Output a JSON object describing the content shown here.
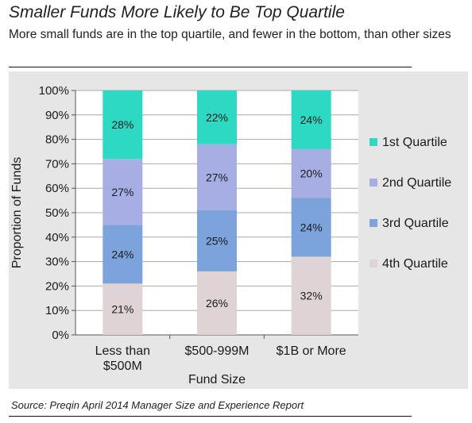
{
  "header": {
    "title": "Smaller Funds More Likely to Be Top Quartile",
    "subtitle": "More small funds are in the top quartile, and fewer in the bottom, than other sizes"
  },
  "footer": {
    "source": "Source: Preqin April 2014 Manager Size and Experience Report"
  },
  "chart_data": {
    "type": "bar",
    "stacked": true,
    "title": "Smaller Funds More Likely to Be Top Quartile",
    "subtitle": "More small funds are in the top quartile, and fewer in the bottom, than other sizes",
    "xlabel": "Fund Size",
    "ylabel": "Proportion of Funds",
    "ylim": [
      0,
      100
    ],
    "yticks": [
      "0%",
      "10%",
      "20%",
      "30%",
      "40%",
      "50%",
      "60%",
      "70%",
      "80%",
      "90%",
      "100%"
    ],
    "categories": [
      [
        "Less than",
        "$500M"
      ],
      [
        "$500-999M"
      ],
      [
        "$1B or More"
      ]
    ],
    "legend_position": "right",
    "grid": true,
    "series": [
      {
        "name": "4th Quartile",
        "color": "#e0d3d5",
        "values": [
          21,
          26,
          32
        ],
        "labels": [
          "21%",
          "26%",
          "32%"
        ]
      },
      {
        "name": "3rd Quartile",
        "color": "#7da3dd",
        "values": [
          24,
          25,
          24
        ],
        "labels": [
          "24%",
          "25%",
          "24%"
        ]
      },
      {
        "name": "2nd Quartile",
        "color": "#a6aee4",
        "values": [
          27,
          27,
          20
        ],
        "labels": [
          "27%",
          "27%",
          "20%"
        ]
      },
      {
        "name": "1st Quartile",
        "color": "#2ed9c3",
        "values": [
          28,
          22,
          24
        ],
        "labels": [
          "28%",
          "22%",
          "24%"
        ]
      }
    ],
    "legend_order": [
      "1st Quartile",
      "2nd Quartile",
      "3rd Quartile",
      "4th Quartile"
    ]
  }
}
